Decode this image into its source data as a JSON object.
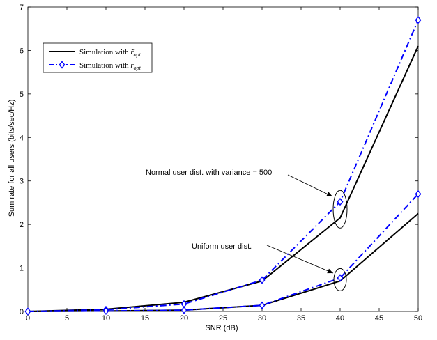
{
  "chart_data": {
    "type": "line",
    "xlabel": "SNR (dB)",
    "ylabel": "Sum rate for all users (bits/sec/Hz)",
    "xlim": [
      0,
      50
    ],
    "ylim": [
      0,
      7
    ],
    "xticks": [
      0,
      5,
      10,
      15,
      20,
      25,
      30,
      35,
      40,
      45,
      50
    ],
    "yticks": [
      0,
      1,
      2,
      3,
      4,
      5,
      6,
      7
    ],
    "grid": false,
    "legend_position": "top-left",
    "series": [
      {
        "name": "Simulation with r̃opt",
        "legend_base": "Simulation with ",
        "legend_symbol": "r̃",
        "legend_sub": "opt",
        "group": "normal",
        "style": "solid",
        "color": "#000000",
        "marker": "none",
        "x": [
          0,
          10,
          20,
          30,
          40,
          50
        ],
        "values": [
          0.0,
          0.05,
          0.21,
          0.7,
          2.15,
          6.1
        ]
      },
      {
        "name": "Simulation with ropt",
        "legend_base": "Simulation with ",
        "legend_symbol": "r",
        "legend_sub": "opt",
        "group": "normal",
        "style": "dash-dot",
        "color": "#0000ff",
        "marker": "diamond",
        "x": [
          0,
          10,
          20,
          30,
          40,
          50
        ],
        "values": [
          0.0,
          0.04,
          0.17,
          0.72,
          2.52,
          6.7
        ]
      },
      {
        "group": "uniform",
        "style": "solid",
        "color": "#000000",
        "marker": "none",
        "x": [
          0,
          10,
          20,
          30,
          40,
          50
        ],
        "values": [
          0.0,
          0.01,
          0.03,
          0.14,
          0.7,
          2.25
        ]
      },
      {
        "group": "uniform",
        "style": "dash-dot",
        "color": "#0000ff",
        "marker": "diamond",
        "x": [
          0,
          10,
          20,
          30,
          40,
          50
        ],
        "values": [
          0.0,
          0.01,
          0.03,
          0.14,
          0.77,
          2.7
        ]
      }
    ],
    "annotations": [
      {
        "text": "Normal user dist. with variance = 500",
        "target_x": 40,
        "target_y": 2.35
      },
      {
        "text": "Uniform user dist.",
        "target_x": 40,
        "target_y": 0.75
      }
    ]
  }
}
